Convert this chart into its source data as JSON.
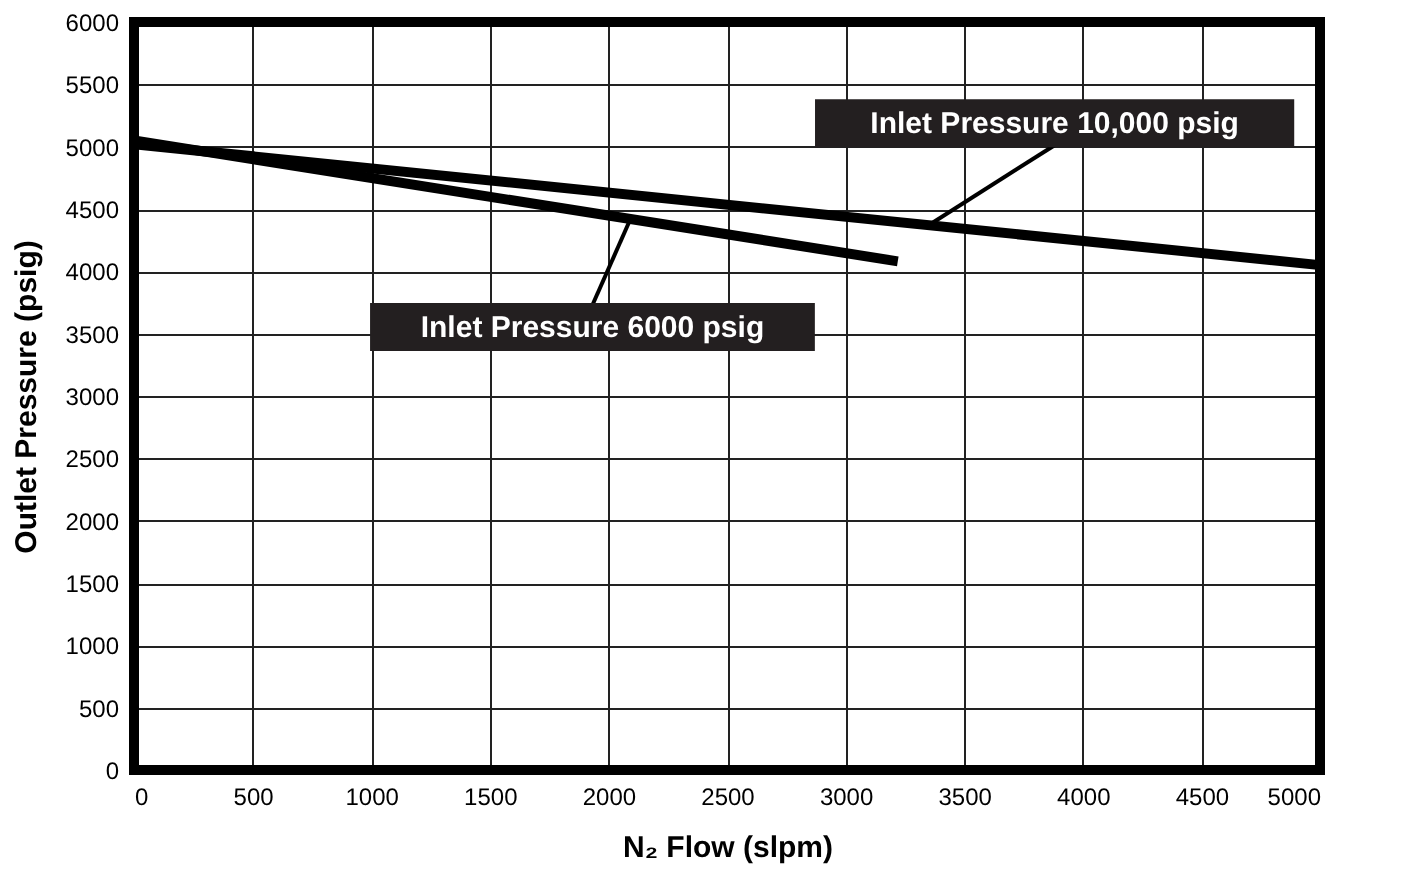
{
  "chart_data": {
    "type": "line",
    "xlabel": "N₂ Flow (slpm)",
    "ylabel": "Outlet Pressure (psig)",
    "series": [
      {
        "name": "Inlet Pressure 10,000 psig",
        "color": "#000000",
        "x": [
          0,
          5000
        ],
        "values": [
          5020,
          4050
        ]
      },
      {
        "name": "Inlet Pressure 6000 psig",
        "color": "#000000",
        "x": [
          0,
          3220
        ],
        "values": [
          5050,
          4080
        ]
      }
    ],
    "xlim": [
      0,
      5000
    ],
    "xticks": [
      0,
      500,
      1000,
      1500,
      2000,
      2500,
      3000,
      3500,
      4000,
      4500,
      5000
    ],
    "ylim": [
      0,
      6000
    ],
    "yticks": [
      0,
      500,
      1000,
      1500,
      2000,
      2500,
      3000,
      3500,
      4000,
      4500,
      5000,
      5500,
      6000
    ],
    "grid": true,
    "legend": false,
    "marker": "none",
    "line_style": "solid"
  }
}
